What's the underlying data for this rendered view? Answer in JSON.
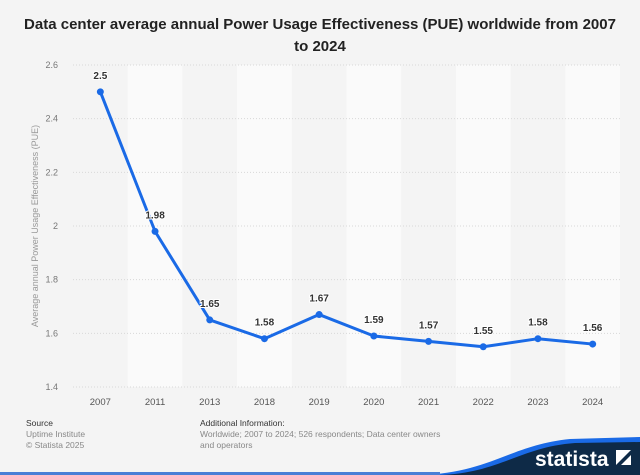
{
  "chart_data": {
    "type": "line",
    "title": "Data center average annual Power Usage Effectiveness (PUE) worldwide from 2007 to 2024",
    "xlabel": "",
    "ylabel": "Average annual Power Usage Effectiveness (PUE)",
    "categories": [
      "2007",
      "2011",
      "2013",
      "2018",
      "2019",
      "2020",
      "2021",
      "2022",
      "2023",
      "2024"
    ],
    "values": [
      2.5,
      1.98,
      1.65,
      1.58,
      1.67,
      1.59,
      1.57,
      1.55,
      1.58,
      1.56
    ],
    "data_labels": [
      "2.5",
      "1.98",
      "1.65",
      "1.58",
      "1.67",
      "1.59",
      "1.57",
      "1.55",
      "1.58",
      "1.56"
    ],
    "ylim": [
      1.4,
      2.6
    ],
    "yticks": [
      "1.4",
      "1.6",
      "1.8",
      "2",
      "2.2",
      "2.4",
      "2.6"
    ],
    "grid": true,
    "line_color": "#1a6ae6"
  },
  "footer": {
    "source_heading": "Source",
    "source": "Uptime Institute",
    "copyright": "© Statista 2025",
    "info_heading": "Additional Information:",
    "info": "Worldwide; 2007 to 2024; 526 respondents; Data center owners and operators",
    "logo_text": "statista"
  }
}
